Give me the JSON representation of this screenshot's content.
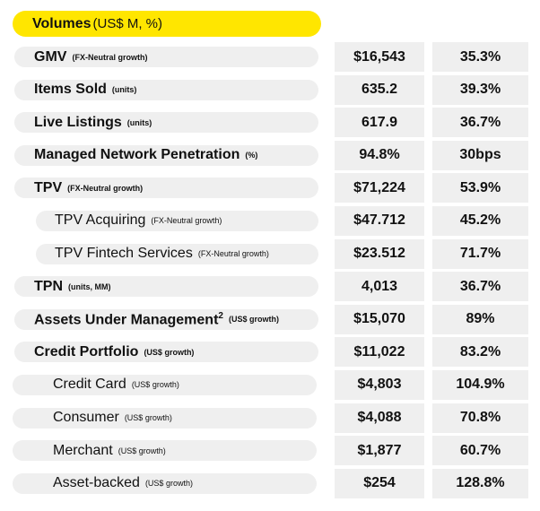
{
  "header": {
    "title": "Volumes",
    "unit": "(US$ M, %)"
  },
  "rows": [
    {
      "name": "GMV",
      "unit": "(FX-Neutral growth)",
      "value": "$16,543",
      "growth": "35.3%"
    },
    {
      "name": "Items Sold",
      "unit": "(units)",
      "value": "635.2",
      "growth": "39.3%"
    },
    {
      "name": "Live Listings",
      "unit": "(units)",
      "value": "617.9",
      "growth": "36.7%"
    },
    {
      "name": "Managed Network Penetration",
      "unit": "(%)",
      "value": "94.8%",
      "growth": "30bps"
    },
    {
      "name": "TPV",
      "unit": "(FX-Neutral growth)",
      "value": "$71,224",
      "growth": "53.9%"
    },
    {
      "name": "TPV Acquiring",
      "unit": "(FX-Neutral growth)",
      "value": "$47.712",
      "growth": "45.2%"
    },
    {
      "name": "TPV Fintech Services",
      "unit": "(FX-Neutral growth)",
      "value": "$23.512",
      "growth": "71.7%"
    },
    {
      "name": "TPN",
      "unit": "(units, MM)",
      "value": "4,013",
      "growth": "36.7%"
    },
    {
      "name": "Assets Under Management",
      "sup": "2",
      "unit": "(US$ growth)",
      "value": "$15,070",
      "growth": "89%"
    },
    {
      "name": "Credit Portfolio",
      "unit": "(US$ growth)",
      "value": "$11,022",
      "growth": "83.2%"
    },
    {
      "name": "Credit Card",
      "unit": "(US$ growth)",
      "value": "$4,803",
      "growth": "104.9%"
    },
    {
      "name": "Consumer",
      "unit": "(US$ growth)",
      "value": "$4,088",
      "growth": "70.8%"
    },
    {
      "name": "Merchant",
      "unit": "(US$ growth)",
      "value": "$1,877",
      "growth": "60.7%"
    },
    {
      "name": "Asset-backed",
      "unit": "(US$ growth)",
      "value": "$254",
      "growth": "128.8%"
    }
  ]
}
